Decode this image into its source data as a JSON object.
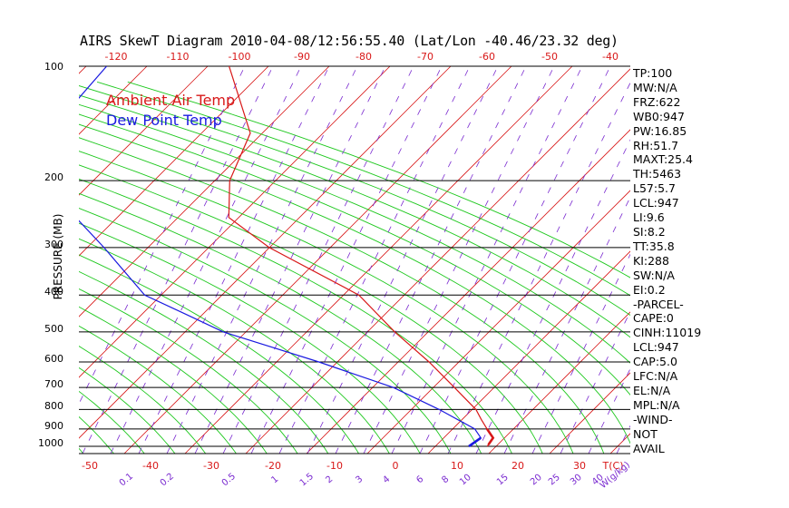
{
  "title": "AIRS SkewT Diagram 2010-04-08/12:56:55.40 (Lat/Lon -40.46/23.32 deg)",
  "legend": {
    "air": "Ambient Air Temp",
    "dew": "Dew Point Temp"
  },
  "ylabel": "PRESSURE (MB)",
  "colors": {
    "air": "#d81818",
    "dew": "#1a1ae0",
    "dry_adiabat": "#d81818",
    "moist_adiabat": "#1ec81e",
    "mixing_ratio": "#7a2ad0",
    "isobar": "#000000"
  },
  "stats": [
    "TP:100",
    "MW:N/A",
    "FRZ:622",
    "WB0:947",
    "PW:16.85",
    "RH:51.7",
    "MAXT:25.4",
    "TH:5463",
    "L57:5.7",
    "LCL:947",
    "LI:9.6",
    "SI:8.2",
    "TT:35.8",
    "KI:288",
    "SW:N/A",
    "EI:0.2",
    "-PARCEL-",
    "CAPE:0",
    "CINH:11019",
    "LCL:947",
    "CAP:5.0",
    "LFC:N/A",
    "EL:N/A",
    "MPL:N/A",
    "-WIND-",
    "NOT",
    "AVAIL"
  ],
  "pressure_ticks": [
    "100",
    "200",
    "300",
    "400",
    "500",
    "600",
    "700",
    "800",
    "900",
    "1000"
  ],
  "top_temp_ticks": [
    "-120",
    "-110",
    "-100",
    "-90",
    "-80",
    "-70",
    "-60",
    "-50",
    "-40"
  ],
  "bottom_temp_ticks": [
    "-50",
    "-40",
    "-30",
    "-20",
    "-10",
    "0",
    "10",
    "20",
    "30"
  ],
  "bottom_temp_unit": "T(C)",
  "mixing_ratio_ticks": [
    "0.1",
    "0.2",
    "0.5",
    "1",
    "1.5",
    "2",
    "3",
    "4",
    "6",
    "8",
    "10",
    "15",
    "20",
    "25",
    "30",
    "40"
  ],
  "mixing_ratio_unit": "W(g/kg)",
  "chart_data": {
    "type": "line",
    "title": "AIRS SkewT Diagram 2010-04-08/12:56:55.40 (Lat/Lon -40.46/23.32 deg)",
    "ylabel": "PRESSURE (MB)",
    "xlabel": "T(C)",
    "y_scale": "log",
    "ylim": [
      1050,
      100
    ],
    "series": [
      {
        "name": "Ambient Air Temp",
        "pressure": [
          100,
          150,
          200,
          250,
          300,
          400,
          500,
          600,
          700,
          800,
          850,
          900,
          950,
          1000
        ],
        "temperature": [
          -70,
          -59,
          -57,
          -53,
          -43,
          -23,
          -13,
          -4,
          3,
          9,
          11,
          13,
          15,
          15
        ]
      },
      {
        "name": "Dew Point Temp",
        "pressure": [
          100,
          150,
          200,
          250,
          300,
          400,
          450,
          500,
          600,
          700,
          800,
          900,
          950,
          1000
        ],
        "temperature": [
          -90,
          -92,
          -84,
          -78,
          -70,
          -58,
          -49,
          -41,
          -22,
          -7,
          3,
          11,
          13,
          12
        ]
      }
    ]
  }
}
